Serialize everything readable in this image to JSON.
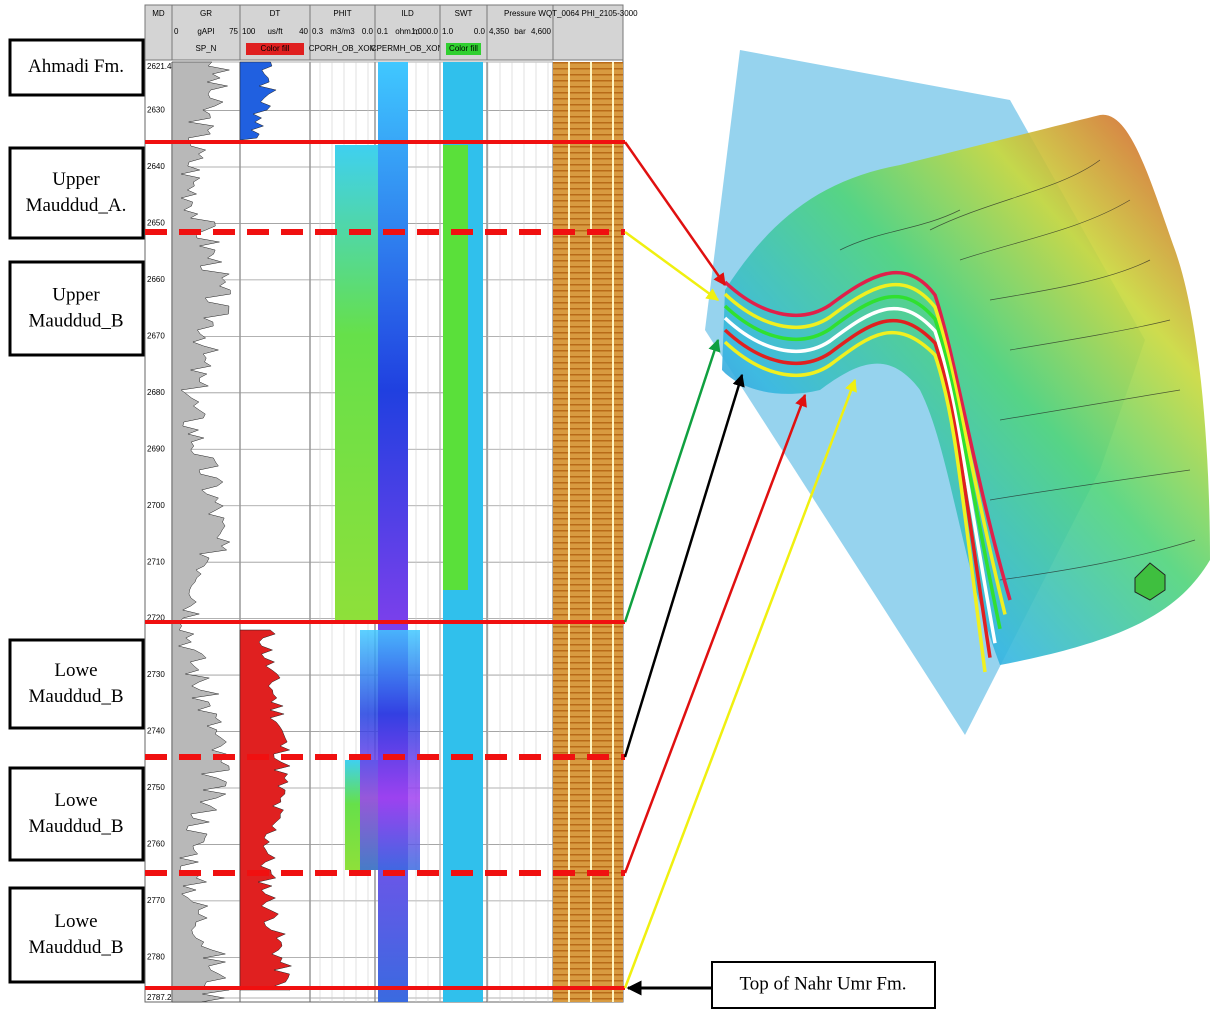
{
  "log_header": {
    "tracks": [
      {
        "name": "MD"
      },
      {
        "name": "GR",
        "scale": [
          "0",
          "gAPI",
          "75"
        ],
        "curve": "SP_N"
      },
      {
        "name": "DT",
        "scale": [
          "100",
          "us/ft",
          "40"
        ],
        "curve": "Color fill"
      },
      {
        "name": "PHIT",
        "scale": [
          "0.3",
          "m3/m3",
          "0.0"
        ],
        "curve": "CPORH_OB_XOM"
      },
      {
        "name": "ILD",
        "scale": [
          "0.1",
          "ohm.m",
          "1,000.0"
        ],
        "curve": "CPERMH_OB_XOM"
      },
      {
        "name": "SWT",
        "scale": [
          "1.0",
          "",
          "0.0"
        ],
        "curve": "Color fill"
      },
      {
        "name": "Pressure",
        "scale": [
          "4,350",
          "bar",
          "4,600"
        ]
      },
      {
        "name": "WQT_0064 PHI_2105-3000"
      }
    ]
  },
  "depth_ticks": [
    2621.4,
    2630,
    2640,
    2650,
    2660,
    2670,
    2680,
    2690,
    2700,
    2710,
    2720,
    2730,
    2740,
    2750,
    2760,
    2770,
    2780,
    2787.2
  ],
  "formations": [
    "Ahmadi Fm.",
    "Upper Mauddud_A.",
    "Upper Mauddud_B",
    "Lowe Mauddud_B",
    "Lowe Mauddud_B",
    "Lowe Mauddud_B"
  ],
  "callout": "Top of Nahr Umr Fm."
}
